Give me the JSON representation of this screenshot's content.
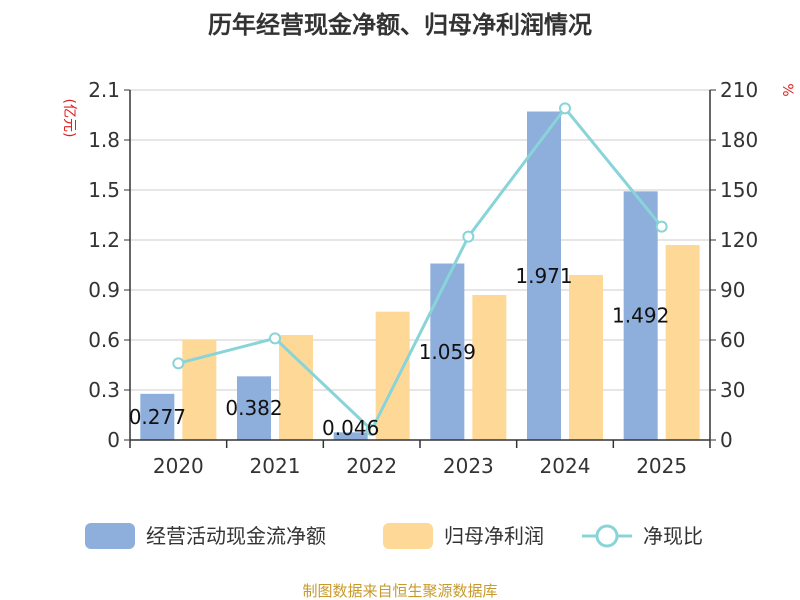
{
  "chart_data": {
    "type": "bar",
    "title": "历年经营现金净额、归母净利润情况",
    "categories": [
      "2020",
      "2021",
      "2022",
      "2023",
      "2024",
      "2025"
    ],
    "y_left": {
      "label": "(亿元)",
      "ylim": [
        0,
        2.1
      ],
      "ticks": [
        "0",
        "0.3",
        "0.6",
        "0.9",
        "1.2",
        "1.5",
        "1.8",
        "2.1"
      ]
    },
    "y_right": {
      "label": "%",
      "ylim": [
        0,
        210
      ],
      "ticks": [
        "0",
        "30",
        "60",
        "90",
        "120",
        "150",
        "180",
        "210"
      ]
    },
    "series": [
      {
        "name": "经营活动现金流净额",
        "kind": "bar",
        "axis": "left",
        "color": "#8eaedb",
        "values": [
          0.277,
          0.382,
          0.046,
          1.059,
          1.971,
          1.492
        ],
        "labels": [
          "0.277",
          "0.382",
          "0.046",
          "1.059",
          "1.971",
          "1.492"
        ]
      },
      {
        "name": "归母净利润",
        "kind": "bar",
        "axis": "left",
        "color": "#fed897",
        "values": [
          0.6,
          0.63,
          0.77,
          0.87,
          0.99,
          1.17
        ]
      },
      {
        "name": "净现比",
        "kind": "line",
        "axis": "right",
        "color": "#88d4d8",
        "values": [
          46,
          61,
          6,
          122,
          199,
          128
        ]
      }
    ],
    "grid": true,
    "legend": "bottom"
  },
  "footer": {
    "source": "制图数据来自恒生聚源数据库"
  },
  "colors": {
    "title": "#333333",
    "axis": "#333333",
    "unit": "#e02020",
    "footer": "#c89a2e",
    "grid": "#cccccc"
  }
}
